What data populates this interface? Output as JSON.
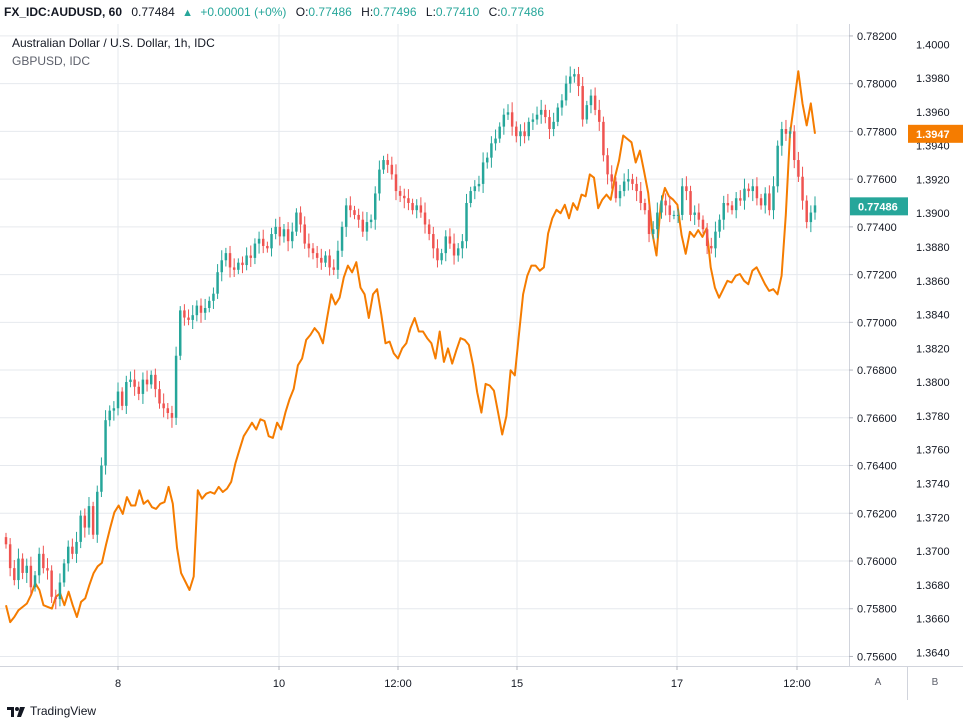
{
  "header": {
    "symbol": "FX_IDC:AUDUSD, 60",
    "price": "0.77484",
    "change_icon": "triangle-up-icon",
    "change": "+0.00001 (+0%)",
    "open_label": "O:",
    "open": "0.77486",
    "high_label": "H:",
    "high": "0.77496",
    "low_label": "L:",
    "low": "0.77410",
    "close_label": "C:",
    "close": "0.77486"
  },
  "legend": {
    "main": "Australian Dollar / U.S. Dollar, 1h, IDC",
    "compare": "GBPUSD, IDC"
  },
  "footer": {
    "brand": "TradingView",
    "scale_a": "A",
    "scale_b": "B"
  },
  "colors": {
    "up": "#26a69a",
    "down": "#ef5350",
    "compare_line": "#f57c00",
    "grid": "#e6e9ee",
    "axis_border": "#d1d4dc",
    "label_audusd": "#26a69a",
    "label_gbpusd": "#f57c00"
  },
  "chart_data": {
    "type": "line",
    "title": "Australian Dollar / U.S. Dollar, 1h, IDC",
    "x_ticks": [
      "8",
      "10",
      "12:00",
      "15",
      "17",
      "12:00"
    ],
    "y_left_ticks": [
      "0.78200",
      "0.78000",
      "0.77800",
      "0.77600",
      "0.77400",
      "0.77200",
      "0.77000",
      "0.76800",
      "0.76600",
      "0.76400",
      "0.76200",
      "0.76000",
      "0.75800",
      "0.75600"
    ],
    "y_right_ticks": [
      "1.4000",
      "1.3980",
      "1.3960",
      "1.3940",
      "1.3920",
      "1.3900",
      "1.3880",
      "1.3860",
      "1.3840",
      "1.3820",
      "1.3800",
      "1.3780",
      "1.3760",
      "1.3740",
      "1.3720",
      "1.3700",
      "1.3680",
      "1.3660",
      "1.3640"
    ],
    "ylim_audusd": [
      0.7556,
      0.7825
    ],
    "ylim_gbpusd": [
      1.3632,
      1.4012
    ],
    "last_audusd_label": "0.77486",
    "last_gbpusd_label": "1.3947",
    "grid": true,
    "series": [
      {
        "name": "Australian Dollar / U.S. Dollar, 1h, IDC",
        "style": "candles",
        "close": [
          0.7607,
          0.7597,
          0.7592,
          0.7601,
          0.7595,
          0.7598,
          0.7589,
          0.7594,
          0.7603,
          0.7597,
          0.7596,
          0.7585,
          0.7584,
          0.7591,
          0.7599,
          0.7606,
          0.7603,
          0.7608,
          0.7619,
          0.7614,
          0.7623,
          0.7611,
          0.7629,
          0.764,
          0.7659,
          0.7663,
          0.7664,
          0.7671,
          0.7665,
          0.7675,
          0.7676,
          0.7673,
          0.767,
          0.7676,
          0.7674,
          0.7678,
          0.7672,
          0.7666,
          0.7664,
          0.7662,
          0.766,
          0.7686,
          0.7705,
          0.7702,
          0.7701,
          0.7703,
          0.7707,
          0.7704,
          0.7706,
          0.7709,
          0.7712,
          0.7721,
          0.7726,
          0.7729,
          0.7723,
          0.7722,
          0.7725,
          0.7724,
          0.7728,
          0.7727,
          0.7733,
          0.7735,
          0.7732,
          0.7731,
          0.7737,
          0.774,
          0.7736,
          0.7739,
          0.7734,
          0.7738,
          0.7746,
          0.7741,
          0.7733,
          0.7731,
          0.7729,
          0.7727,
          0.7725,
          0.7728,
          0.7723,
          0.7722,
          0.773,
          0.774,
          0.7749,
          0.7747,
          0.7745,
          0.7743,
          0.7738,
          0.7742,
          0.7743,
          0.7754,
          0.7764,
          0.7768,
          0.7766,
          0.7762,
          0.7755,
          0.7753,
          0.7752,
          0.775,
          0.7747,
          0.7749,
          0.7746,
          0.7741,
          0.7737,
          0.7731,
          0.7726,
          0.7729,
          0.7736,
          0.7733,
          0.7728,
          0.7731,
          0.7734,
          0.775,
          0.7755,
          0.7757,
          0.7758,
          0.7767,
          0.7769,
          0.7775,
          0.7777,
          0.7782,
          0.7787,
          0.7788,
          0.7782,
          0.7778,
          0.778,
          0.7778,
          0.7784,
          0.7785,
          0.7787,
          0.7789,
          0.7786,
          0.7781,
          0.7784,
          0.779,
          0.7793,
          0.78,
          0.7803,
          0.7804,
          0.7799,
          0.7785,
          0.7791,
          0.7795,
          0.7789,
          0.7784,
          0.777,
          0.7762,
          0.7759,
          0.7752,
          0.7755,
          0.7759,
          0.776,
          0.7758,
          0.7755,
          0.775,
          0.7747,
          0.7737,
          0.7739,
          0.7746,
          0.7751,
          0.7749,
          0.7745,
          0.7745,
          0.7745,
          0.7757,
          0.7755,
          0.7745,
          0.7746,
          0.7743,
          0.7739,
          0.7732,
          0.7731,
          0.7738,
          0.7743,
          0.775,
          0.7749,
          0.7747,
          0.7752,
          0.7751,
          0.7756,
          0.7755,
          0.7757,
          0.7752,
          0.7749,
          0.7754,
          0.7747,
          0.7757,
          0.7774,
          0.7781,
          0.7779,
          0.778,
          0.7768,
          0.7761,
          0.7751,
          0.7742,
          0.7746,
          0.7749
        ]
      },
      {
        "name": "GBPUSD, IDC",
        "style": "line",
        "values": [
          1.3668,
          1.3658,
          1.3661,
          1.3665,
          1.3667,
          1.3669,
          1.3674,
          1.3681,
          1.3677,
          1.3668,
          1.3667,
          1.3666,
          1.3673,
          1.3675,
          1.3668,
          1.3676,
          1.3668,
          1.3661,
          1.367,
          1.3672,
          1.368,
          1.3687,
          1.3691,
          1.3693,
          1.3704,
          1.3714,
          1.3723,
          1.3727,
          1.3722,
          1.3732,
          1.3727,
          1.3727,
          1.3736,
          1.3728,
          1.373,
          1.3726,
          1.3725,
          1.3728,
          1.3729,
          1.3738,
          1.3728,
          1.3702,
          1.3687,
          1.3682,
          1.3677,
          1.3685,
          1.3736,
          1.3731,
          1.3734,
          1.3735,
          1.3734,
          1.3738,
          1.3735,
          1.3737,
          1.3741,
          1.3752,
          1.376,
          1.3768,
          1.3772,
          1.3776,
          1.3772,
          1.3778,
          1.3777,
          1.3768,
          1.3767,
          1.3776,
          1.3772,
          1.3782,
          1.379,
          1.3796,
          1.381,
          1.3814,
          1.3825,
          1.3828,
          1.3832,
          1.3829,
          1.3823,
          1.3838,
          1.3852,
          1.3846,
          1.385,
          1.3862,
          1.3869,
          1.3865,
          1.3871,
          1.3856,
          1.3852,
          1.3838,
          1.3852,
          1.3855,
          1.384,
          1.3823,
          1.3824,
          1.3817,
          1.3814,
          1.382,
          1.3823,
          1.3832,
          1.3838,
          1.383,
          1.383,
          1.3826,
          1.3823,
          1.3814,
          1.383,
          1.3812,
          1.382,
          1.3811,
          1.3819,
          1.3826,
          1.3825,
          1.3822,
          1.381,
          1.3794,
          1.3782,
          1.3799,
          1.3798,
          1.3795,
          1.3782,
          1.3769,
          1.378,
          1.3807,
          1.3804,
          1.3828,
          1.3852,
          1.3863,
          1.3869,
          1.3869,
          1.3866,
          1.3868,
          1.3888,
          1.3897,
          1.3902,
          1.39,
          1.3905,
          1.3897,
          1.3906,
          1.3902,
          1.3911,
          1.391,
          1.3923,
          1.3921,
          1.3903,
          1.3908,
          1.3911,
          1.3908,
          1.3921,
          1.3931,
          1.3946,
          1.3944,
          1.3942,
          1.393,
          1.3937,
          1.3925,
          1.3912,
          1.3888,
          1.3875,
          1.3905,
          1.3915,
          1.391,
          1.3908,
          1.3905,
          1.3887,
          1.3876,
          1.3889,
          1.3886,
          1.389,
          1.3886,
          1.3891,
          1.3868,
          1.3856,
          1.385,
          1.3855,
          1.386,
          1.3859,
          1.3863,
          1.3864,
          1.386,
          1.3858,
          1.3866,
          1.3868,
          1.3863,
          1.3858,
          1.3854,
          1.3855,
          1.3852,
          1.3863,
          1.3899,
          1.3947,
          1.3965,
          1.3984,
          1.3965,
          1.3952,
          1.3965,
          1.3947
        ]
      }
    ]
  }
}
